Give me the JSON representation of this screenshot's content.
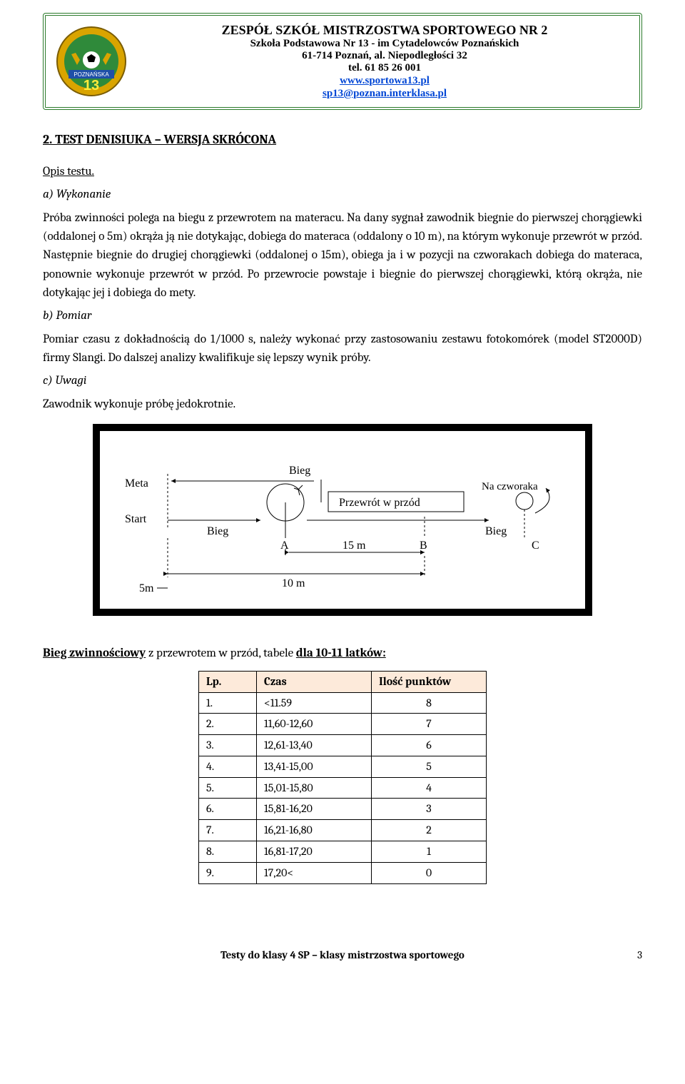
{
  "letterhead": {
    "line1": "ZESPÓŁ SZKÓŁ MISTRZOSTWA SPORTOWEGO NR 2",
    "line2": "Szkoła Podstawowa Nr 13 - im Cytadelowców Poznańskich",
    "line3": "61-714 Poznań, al. Niepodległości 32",
    "line4": "tel. 61 85 26 001",
    "link1": "www.sportowa13.pl",
    "link2": "sp13@poznan.interklasa.pl",
    "logo": {
      "ring_color": "#d9a400",
      "field_color": "#2f8a3a",
      "text": "POZNAŃSKA",
      "number": "13",
      "field_text_color": "#ffeb3b"
    }
  },
  "section": {
    "heading": "2. TEST DENISIUKA – WERSJA SKRÓCONA",
    "opis_label": "Opis testu.",
    "a_label": "a) Wykonanie",
    "a_text": "Próba zwinności polega na biegu z przewrotem na materacu. Na dany sygnał zawodnik biegnie do pierwszej chorągiewki (oddalonej o 5m) okrąża ją nie dotykając, dobiega do materaca (oddalony o 10 m), na którym wykonuje przewrót w przód. Następnie biegnie do drugiej chorągiewki (oddalonej o 15m), obiega ja i w pozycji na czworakach dobiega  do materaca, ponownie wykonuje przewrót w przód. Po przewrocie powstaje i biegnie do pierwszej chorągiewki, którą okrąża, nie dotykając jej i  dobiega do mety.",
    "b_label": "b) Pomiar",
    "b_text": "Pomiar czasu z dokładnością do 1/1000 s, należy wykonać przy zastosowaniu zestawu fotokomórek (model ST2000D) firmy Slangi. Do dalszej analizy kwalifikuje się lepszy wynik próby.",
    "c_label": "c) Uwagi",
    "c_text": "Zawodnik wykonuje próbę jedokrotnie."
  },
  "diagram": {
    "labels": {
      "meta": "Meta",
      "start": "Start",
      "bieg_top": "Bieg",
      "bieg1": "Bieg",
      "bieg2": "Bieg",
      "przewrot": "Przewrót w przód",
      "czworaka": "Na czworaka",
      "m5": "5m",
      "m10": "10 m",
      "m15": "15 m",
      "A": "A",
      "B": "B",
      "C": "C"
    },
    "stroke": "#000000",
    "bg": "#ffffff"
  },
  "table": {
    "title_u1": "Bieg zwinnościowy",
    "title_mid": " z przewrotem w przód,  tabele ",
    "title_u2": "dla 10-11 latków:",
    "headers": {
      "h1": "Lp.",
      "h2": "Czas",
      "h3": "Ilość punktów"
    },
    "col_widths": {
      "c1": 60,
      "c2": 140,
      "c3": 140
    },
    "rows": [
      {
        "lp": "1.",
        "czas": "<11.59",
        "pkt": "8"
      },
      {
        "lp": "2.",
        "czas": "11,60-12,60",
        "pkt": "7"
      },
      {
        "lp": "3.",
        "czas": "12,61-13,40",
        "pkt": "6"
      },
      {
        "lp": "4.",
        "czas": "13,41-15,00",
        "pkt": "5"
      },
      {
        "lp": "5.",
        "czas": "15,01-15,80",
        "pkt": "4"
      },
      {
        "lp": "6.",
        "czas": "15,81-16,20",
        "pkt": "3"
      },
      {
        "lp": "7.",
        "czas": "16,21-16,80",
        "pkt": "2"
      },
      {
        "lp": "8.",
        "czas": "16,81-17,20",
        "pkt": "1"
      },
      {
        "lp": "9.",
        "czas": "17,20<",
        "pkt": "0"
      }
    ]
  },
  "footer": {
    "text": "Testy  do klasy 4 SP – klasy mistrzostwa sportowego",
    "page": "3"
  }
}
